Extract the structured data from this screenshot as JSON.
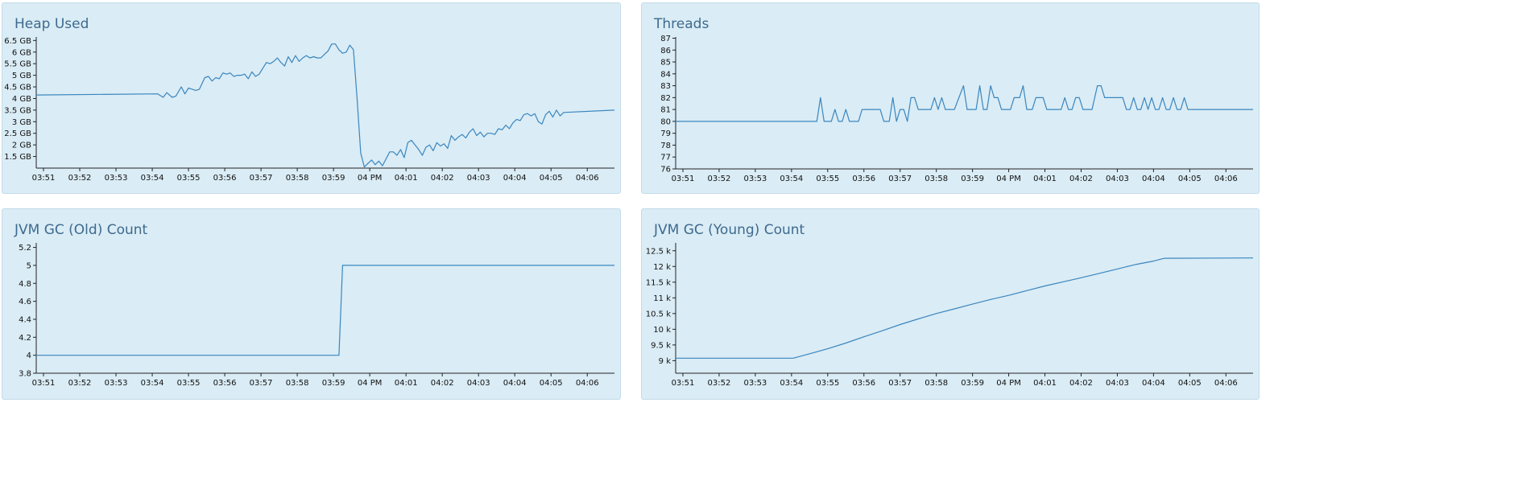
{
  "dashboard": {
    "panels": [
      {
        "title": "Heap Used"
      },
      {
        "title": "Threads"
      },
      {
        "title": "JVM GC (Old) Count"
      },
      {
        "title": "JVM GC (Young) Count"
      }
    ]
  },
  "colors": {
    "line": "#3a86bf",
    "panel_bg": "#daecf5",
    "title": "#3e6a8e",
    "axis": "#222222"
  },
  "chart_data": [
    {
      "type": "line",
      "title": "Heap Used",
      "x_ticks": [
        "03:51",
        "03:52",
        "03:53",
        "03:54",
        "03:55",
        "03:56",
        "03:57",
        "03:58",
        "03:59",
        "04 PM",
        "04:01",
        "04:02",
        "04:03",
        "04:04",
        "04:05",
        "04:06"
      ],
      "y_ticks": [
        "1.5 GB",
        "2 GB",
        "2.5 GB",
        "3 GB",
        "3.5 GB",
        "4 GB",
        "4.5 GB",
        "5 GB",
        "5.5 GB",
        "6 GB",
        "6.5 GB"
      ],
      "y_tick_values": [
        1.5,
        2,
        2.5,
        3,
        3.5,
        4,
        4.5,
        5,
        5.5,
        6,
        6.5
      ],
      "ylim": [
        1.0,
        6.65
      ],
      "xlim": [
        50.8,
        66.75
      ],
      "x_unit": "minutes after 03:00",
      "y_unit": "GB",
      "series": [
        {
          "points": [
            [
              50.8,
              4.15
            ],
            [
              54.15,
              4.2
            ],
            [
              54.3,
              4.05
            ],
            [
              54.4,
              4.25
            ],
            [
              54.55,
              4.05
            ],
            [
              54.65,
              4.1
            ],
            [
              54.8,
              4.5
            ],
            [
              54.9,
              4.2
            ],
            [
              55.0,
              4.45
            ],
            [
              55.1,
              4.4
            ],
            [
              55.2,
              4.35
            ],
            [
              55.3,
              4.4
            ],
            [
              55.45,
              4.9
            ],
            [
              55.55,
              4.95
            ],
            [
              55.65,
              4.75
            ],
            [
              55.75,
              4.9
            ],
            [
              55.85,
              4.85
            ],
            [
              55.95,
              5.1
            ],
            [
              56.05,
              5.05
            ],
            [
              56.15,
              5.1
            ],
            [
              56.25,
              4.95
            ],
            [
              56.35,
              5.0
            ],
            [
              56.45,
              5.0
            ],
            [
              56.55,
              5.05
            ],
            [
              56.65,
              4.85
            ],
            [
              56.75,
              5.15
            ],
            [
              56.85,
              4.95
            ],
            [
              56.95,
              5.05
            ],
            [
              57.05,
              5.3
            ],
            [
              57.15,
              5.55
            ],
            [
              57.25,
              5.5
            ],
            [
              57.35,
              5.6
            ],
            [
              57.45,
              5.75
            ],
            [
              57.55,
              5.55
            ],
            [
              57.65,
              5.4
            ],
            [
              57.75,
              5.8
            ],
            [
              57.85,
              5.55
            ],
            [
              57.95,
              5.85
            ],
            [
              58.05,
              5.6
            ],
            [
              58.15,
              5.75
            ],
            [
              58.25,
              5.85
            ],
            [
              58.35,
              5.75
            ],
            [
              58.45,
              5.8
            ],
            [
              58.55,
              5.75
            ],
            [
              58.65,
              5.75
            ],
            [
              58.75,
              5.9
            ],
            [
              58.85,
              6.05
            ],
            [
              58.95,
              6.35
            ],
            [
              59.05,
              6.35
            ],
            [
              59.15,
              6.1
            ],
            [
              59.25,
              5.95
            ],
            [
              59.35,
              6.0
            ],
            [
              59.45,
              6.3
            ],
            [
              59.55,
              6.1
            ],
            [
              59.65,
              4.0
            ],
            [
              59.75,
              1.65
            ],
            [
              59.85,
              1.05
            ],
            [
              59.95,
              1.2
            ],
            [
              60.05,
              1.35
            ],
            [
              60.15,
              1.15
            ],
            [
              60.25,
              1.3
            ],
            [
              60.35,
              1.1
            ],
            [
              60.45,
              1.4
            ],
            [
              60.55,
              1.7
            ],
            [
              60.65,
              1.7
            ],
            [
              60.75,
              1.55
            ],
            [
              60.85,
              1.8
            ],
            [
              60.95,
              1.45
            ],
            [
              61.05,
              2.1
            ],
            [
              61.15,
              2.2
            ],
            [
              61.25,
              2.0
            ],
            [
              61.35,
              1.8
            ],
            [
              61.45,
              1.55
            ],
            [
              61.55,
              1.9
            ],
            [
              61.65,
              2.0
            ],
            [
              61.75,
              1.75
            ],
            [
              61.85,
              2.1
            ],
            [
              61.95,
              1.95
            ],
            [
              62.05,
              2.05
            ],
            [
              62.15,
              1.85
            ],
            [
              62.25,
              2.4
            ],
            [
              62.35,
              2.2
            ],
            [
              62.45,
              2.35
            ],
            [
              62.55,
              2.45
            ],
            [
              62.65,
              2.3
            ],
            [
              62.75,
              2.55
            ],
            [
              62.85,
              2.7
            ],
            [
              62.95,
              2.4
            ],
            [
              63.05,
              2.55
            ],
            [
              63.15,
              2.35
            ],
            [
              63.25,
              2.5
            ],
            [
              63.35,
              2.5
            ],
            [
              63.45,
              2.45
            ],
            [
              63.55,
              2.7
            ],
            [
              63.65,
              2.65
            ],
            [
              63.75,
              2.85
            ],
            [
              63.85,
              2.7
            ],
            [
              63.95,
              2.95
            ],
            [
              64.05,
              3.1
            ],
            [
              64.15,
              3.05
            ],
            [
              64.25,
              3.3
            ],
            [
              64.35,
              3.35
            ],
            [
              64.45,
              3.25
            ],
            [
              64.55,
              3.35
            ],
            [
              64.65,
              3.0
            ],
            [
              64.75,
              2.9
            ],
            [
              64.85,
              3.3
            ],
            [
              64.95,
              3.45
            ],
            [
              65.05,
              3.2
            ],
            [
              65.15,
              3.5
            ],
            [
              65.25,
              3.25
            ],
            [
              65.35,
              3.4
            ],
            [
              66.75,
              3.5
            ]
          ]
        }
      ]
    },
    {
      "type": "line",
      "title": "Threads",
      "x_ticks": [
        "03:51",
        "03:52",
        "03:53",
        "03:54",
        "03:55",
        "03:56",
        "03:57",
        "03:58",
        "03:59",
        "04 PM",
        "04:01",
        "04:02",
        "04:03",
        "04:04",
        "04:05",
        "04:06"
      ],
      "y_ticks": [
        "76",
        "77",
        "78",
        "79",
        "80",
        "81",
        "82",
        "83",
        "84",
        "85",
        "86",
        "87"
      ],
      "y_tick_values": [
        76,
        77,
        78,
        79,
        80,
        81,
        82,
        83,
        84,
        85,
        86,
        87
      ],
      "ylim": [
        76,
        87.1
      ],
      "xlim": [
        50.8,
        66.75
      ],
      "x_unit": "minutes after 03:00",
      "series": [
        {
          "points": [
            [
              50.8,
              80
            ],
            [
              54.7,
              80
            ],
            [
              54.8,
              82
            ],
            [
              54.9,
              80
            ],
            [
              55.1,
              80
            ],
            [
              55.2,
              81
            ],
            [
              55.3,
              80
            ],
            [
              55.4,
              80
            ],
            [
              55.5,
              81
            ],
            [
              55.6,
              80
            ],
            [
              55.85,
              80
            ],
            [
              55.95,
              81
            ],
            [
              56.45,
              81
            ],
            [
              56.55,
              80
            ],
            [
              56.7,
              80
            ],
            [
              56.8,
              82
            ],
            [
              56.9,
              80
            ],
            [
              57.0,
              81
            ],
            [
              57.1,
              81
            ],
            [
              57.2,
              80
            ],
            [
              57.3,
              82
            ],
            [
              57.4,
              82
            ],
            [
              57.5,
              81
            ],
            [
              57.85,
              81
            ],
            [
              57.95,
              82
            ],
            [
              58.05,
              81
            ],
            [
              58.15,
              82
            ],
            [
              58.25,
              81
            ],
            [
              58.5,
              81
            ],
            [
              58.75,
              83
            ],
            [
              58.85,
              81
            ],
            [
              59.1,
              81
            ],
            [
              59.2,
              83
            ],
            [
              59.3,
              81
            ],
            [
              59.4,
              81
            ],
            [
              59.5,
              83
            ],
            [
              59.6,
              82
            ],
            [
              59.7,
              82
            ],
            [
              59.8,
              81
            ],
            [
              60.05,
              81
            ],
            [
              60.15,
              82
            ],
            [
              60.3,
              82
            ],
            [
              60.4,
              83
            ],
            [
              60.5,
              81
            ],
            [
              60.65,
              81
            ],
            [
              60.75,
              82
            ],
            [
              60.95,
              82
            ],
            [
              61.05,
              81
            ],
            [
              61.45,
              81
            ],
            [
              61.55,
              82
            ],
            [
              61.65,
              81
            ],
            [
              61.75,
              81
            ],
            [
              61.85,
              82
            ],
            [
              61.95,
              82
            ],
            [
              62.05,
              81
            ],
            [
              62.3,
              81
            ],
            [
              62.45,
              83
            ],
            [
              62.55,
              83
            ],
            [
              62.65,
              82
            ],
            [
              63.15,
              82
            ],
            [
              63.25,
              81
            ],
            [
              63.35,
              81
            ],
            [
              63.45,
              82
            ],
            [
              63.55,
              81
            ],
            [
              63.65,
              81
            ],
            [
              63.75,
              82
            ],
            [
              63.85,
              81
            ],
            [
              63.95,
              82
            ],
            [
              64.05,
              81
            ],
            [
              64.15,
              81
            ],
            [
              64.25,
              82
            ],
            [
              64.35,
              81
            ],
            [
              64.45,
              81
            ],
            [
              64.55,
              82
            ],
            [
              64.65,
              81
            ],
            [
              64.75,
              81
            ],
            [
              64.85,
              82
            ],
            [
              64.95,
              81
            ],
            [
              66.75,
              81
            ]
          ]
        }
      ]
    },
    {
      "type": "line",
      "title": "JVM GC (Old) Count",
      "x_ticks": [
        "03:51",
        "03:52",
        "03:53",
        "03:54",
        "03:55",
        "03:56",
        "03:57",
        "03:58",
        "03:59",
        "04 PM",
        "04:01",
        "04:02",
        "04:03",
        "04:04",
        "04:05",
        "04:06"
      ],
      "y_ticks": [
        "3.8",
        "4",
        "4.2",
        "4.4",
        "4.6",
        "4.8",
        "5",
        "5.2"
      ],
      "y_tick_values": [
        3.8,
        4,
        4.2,
        4.4,
        4.6,
        4.8,
        5,
        5.2
      ],
      "ylim": [
        3.8,
        5.25
      ],
      "xlim": [
        50.8,
        66.75
      ],
      "x_unit": "minutes after 03:00",
      "series": [
        {
          "points": [
            [
              50.8,
              4
            ],
            [
              59.15,
              4
            ],
            [
              59.25,
              5
            ],
            [
              66.75,
              5
            ]
          ]
        }
      ]
    },
    {
      "type": "line",
      "title": "JVM GC (Young) Count",
      "x_ticks": [
        "03:51",
        "03:52",
        "03:53",
        "03:54",
        "03:55",
        "03:56",
        "03:57",
        "03:58",
        "03:59",
        "04 PM",
        "04:01",
        "04:02",
        "04:03",
        "04:04",
        "04:05",
        "04:06"
      ],
      "y_ticks": [
        "9 k",
        "9.5 k",
        "10 k",
        "10.5 k",
        "11 k",
        "11.5 k",
        "12 k",
        "12.5 k"
      ],
      "y_tick_values": [
        9000,
        9500,
        10000,
        10500,
        11000,
        11500,
        12000,
        12500
      ],
      "ylim": [
        8600,
        12750
      ],
      "xlim": [
        50.8,
        66.75
      ],
      "x_unit": "minutes after 03:00",
      "series": [
        {
          "points": [
            [
              50.8,
              9080
            ],
            [
              54.05,
              9080
            ],
            [
              54.5,
              9220
            ],
            [
              55.0,
              9380
            ],
            [
              55.5,
              9560
            ],
            [
              56.0,
              9760
            ],
            [
              56.5,
              9950
            ],
            [
              57.0,
              10150
            ],
            [
              57.5,
              10330
            ],
            [
              58.0,
              10500
            ],
            [
              58.5,
              10650
            ],
            [
              59.0,
              10800
            ],
            [
              59.5,
              10950
            ],
            [
              60.0,
              11080
            ],
            [
              60.5,
              11230
            ],
            [
              61.0,
              11380
            ],
            [
              61.5,
              11510
            ],
            [
              62.0,
              11640
            ],
            [
              62.5,
              11780
            ],
            [
              63.0,
              11920
            ],
            [
              63.5,
              12060
            ],
            [
              64.0,
              12170
            ],
            [
              64.3,
              12260
            ],
            [
              66.75,
              12270
            ]
          ]
        }
      ]
    }
  ]
}
